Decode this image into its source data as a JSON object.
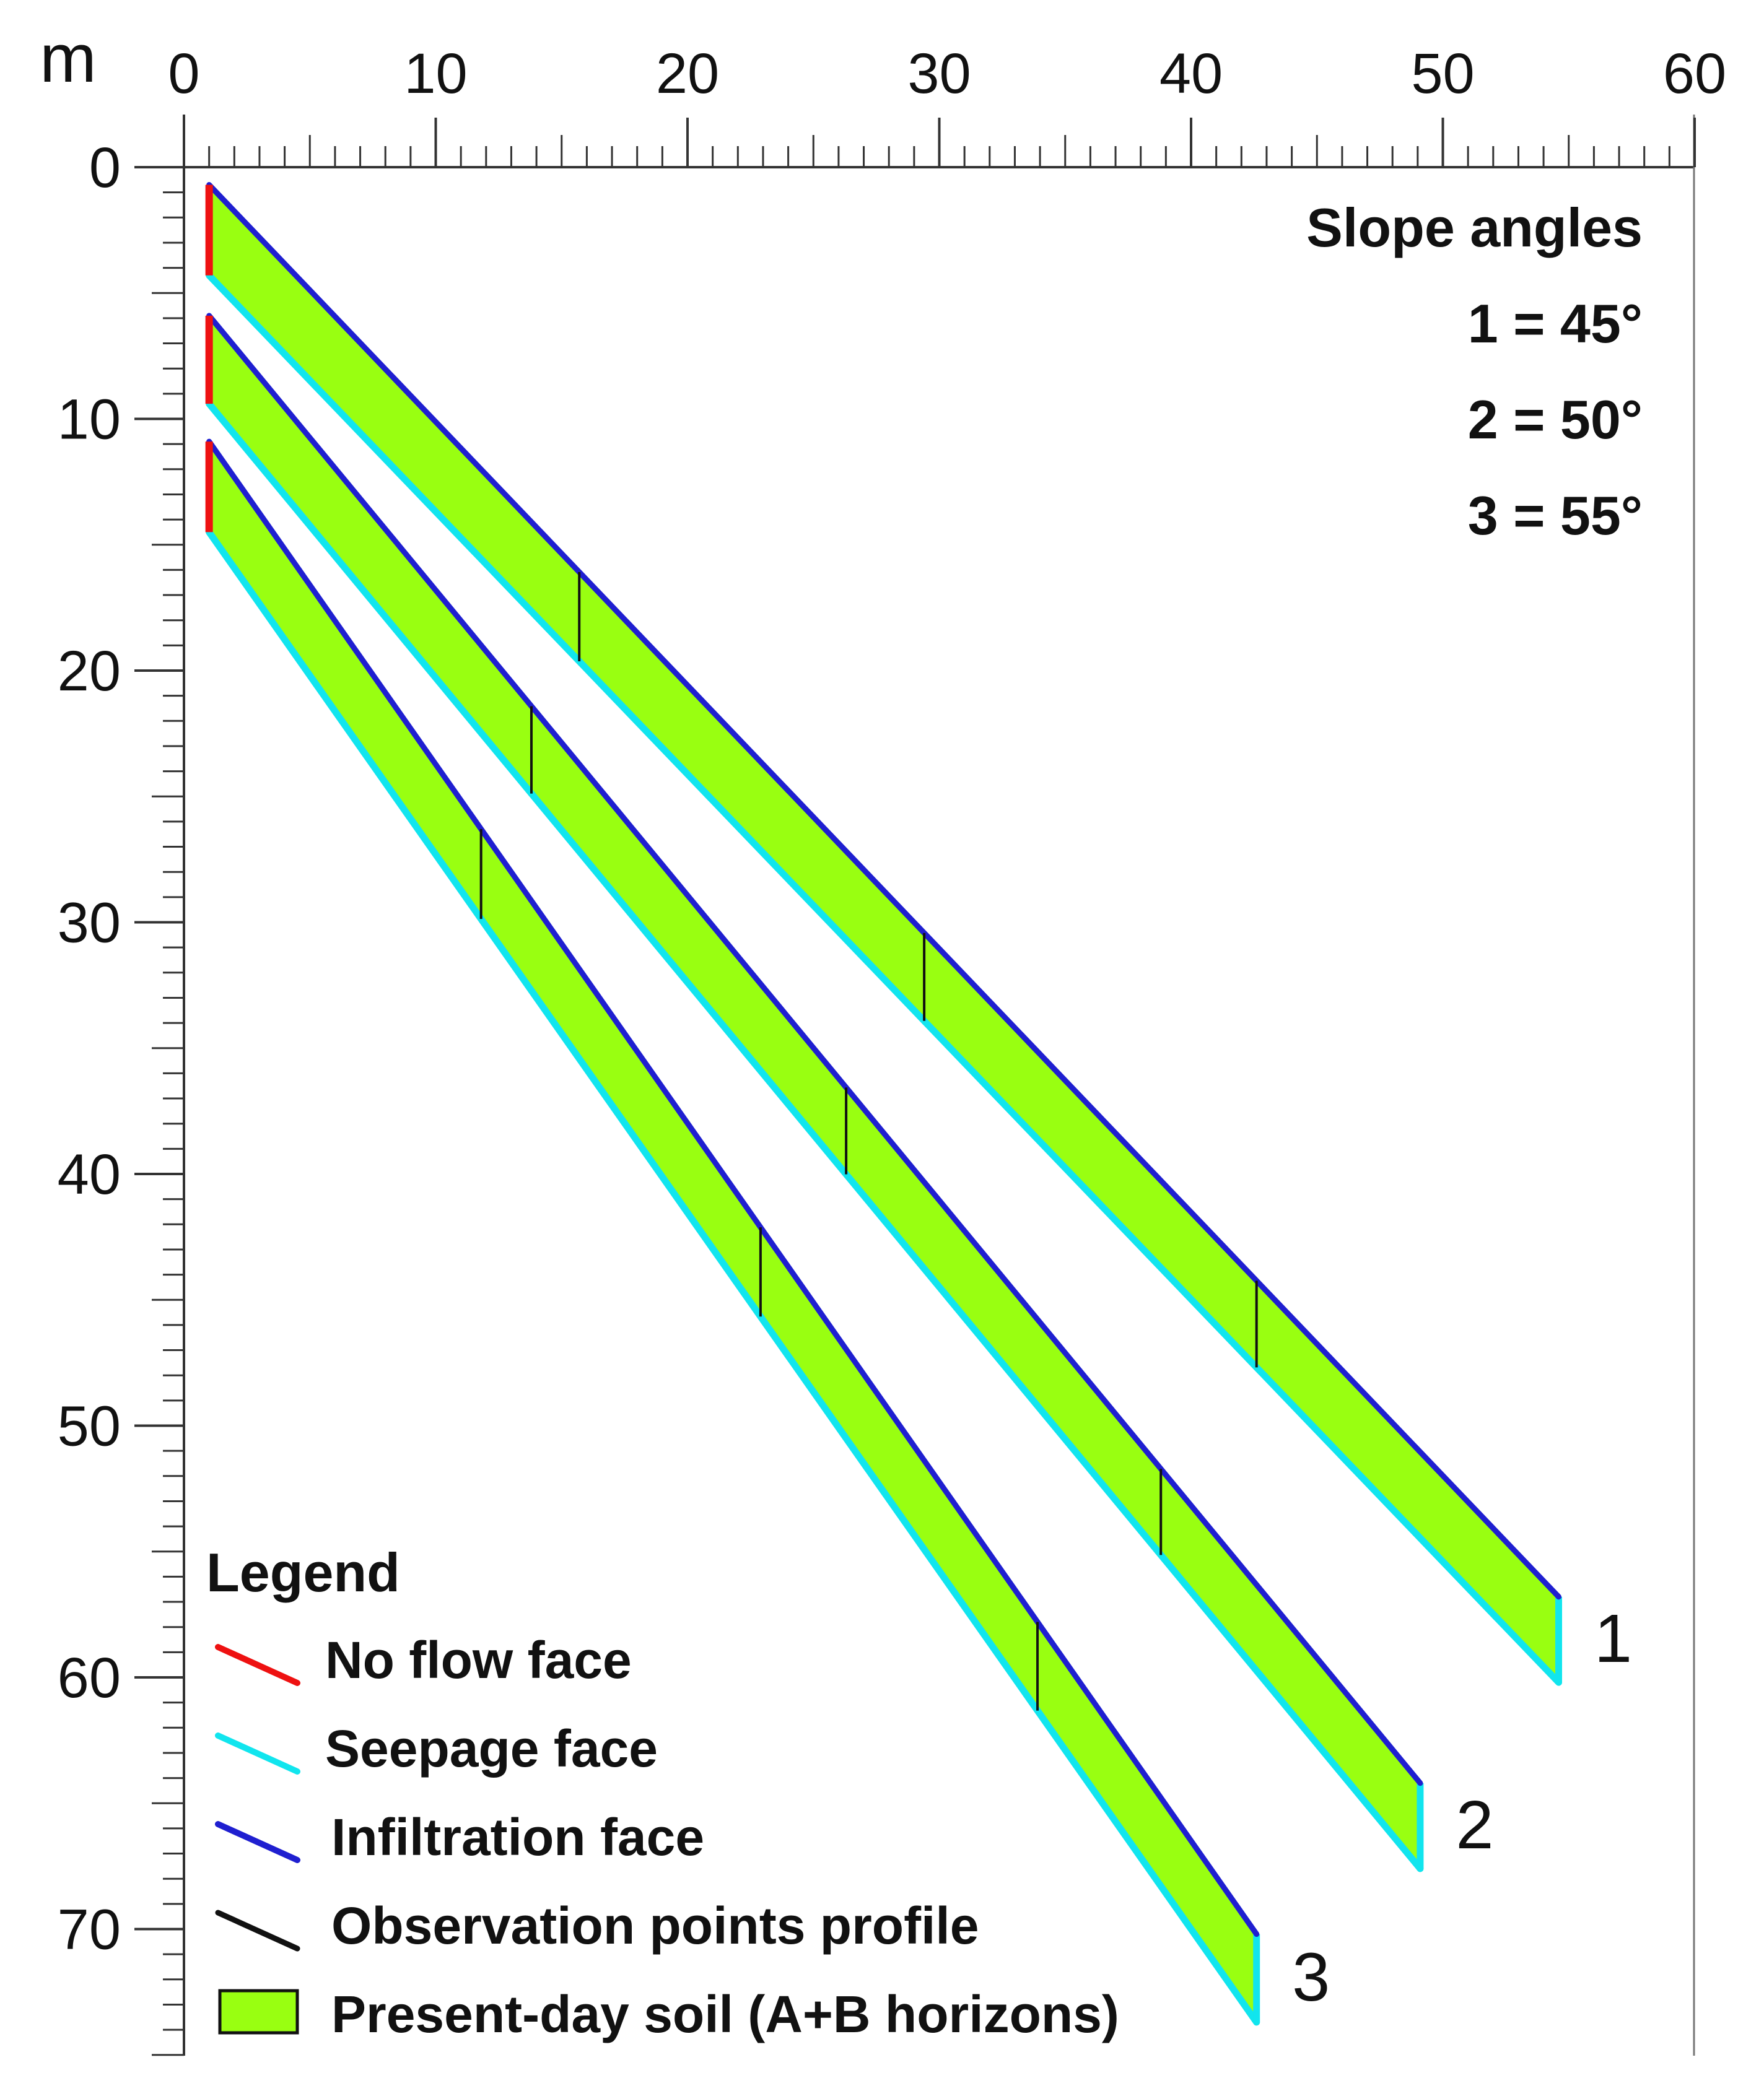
{
  "axes": {
    "x_unit": "m",
    "x_ticks": [
      "0",
      "10",
      "20",
      "30",
      "40",
      "50",
      "60"
    ],
    "y_ticks": [
      "0",
      "10",
      "20",
      "30",
      "40",
      "50",
      "60",
      "70"
    ],
    "x_range": [
      0,
      60
    ],
    "y_range": [
      0,
      75
    ]
  },
  "slope_angles": {
    "title": "Slope angles",
    "items": [
      "1 = 45°",
      "2 = 50°",
      "3 = 55°"
    ]
  },
  "slopes": [
    {
      "id": "1",
      "label": "1",
      "angle_deg": 45,
      "top_start": [
        1,
        0.7
      ],
      "top_end": [
        54.6,
        56.8
      ],
      "bot_start": [
        1,
        4.3
      ],
      "bot_end": [
        54.6,
        60.2
      ],
      "observation_x": [
        15.7,
        29.4,
        42.6
      ]
    },
    {
      "id": "2",
      "label": "2",
      "angle_deg": 50,
      "top_start": [
        1,
        5.9
      ],
      "top_end": [
        49.1,
        64.2
      ],
      "bot_start": [
        1,
        9.4
      ],
      "bot_end": [
        49.1,
        67.6
      ],
      "observation_x": [
        13.8,
        26.3,
        38.8
      ]
    },
    {
      "id": "3",
      "label": "3",
      "angle_deg": 55,
      "top_start": [
        1,
        10.9
      ],
      "top_end": [
        42.6,
        70.2
      ],
      "bot_start": [
        1,
        14.5
      ],
      "bot_end": [
        42.6,
        73.7
      ],
      "observation_x": [
        11.8,
        22.9,
        33.9
      ]
    }
  ],
  "legend": {
    "title": "Legend",
    "items": [
      {
        "key": "no_flow",
        "label": "No flow face",
        "color": "#ee1111",
        "symbol": "line"
      },
      {
        "key": "seepage",
        "label": "Seepage face",
        "color": "#11e5ee",
        "symbol": "line"
      },
      {
        "key": "infiltration",
        "label": "Infiltration face",
        "color": "#1f1fd0",
        "symbol": "line"
      },
      {
        "key": "observation",
        "label": "Observation points profile",
        "color": "#111111",
        "symbol": "line"
      },
      {
        "key": "soil",
        "label": "Present-day soil (A+B horizons)",
        "color": "#99ff11",
        "symbol": "box"
      }
    ]
  },
  "colors": {
    "soil": "#99ff11",
    "no_flow": "#ee1111",
    "seepage": "#11e5ee",
    "infiltration": "#1f1fd0",
    "observation": "#111111",
    "frame": "#333333"
  }
}
